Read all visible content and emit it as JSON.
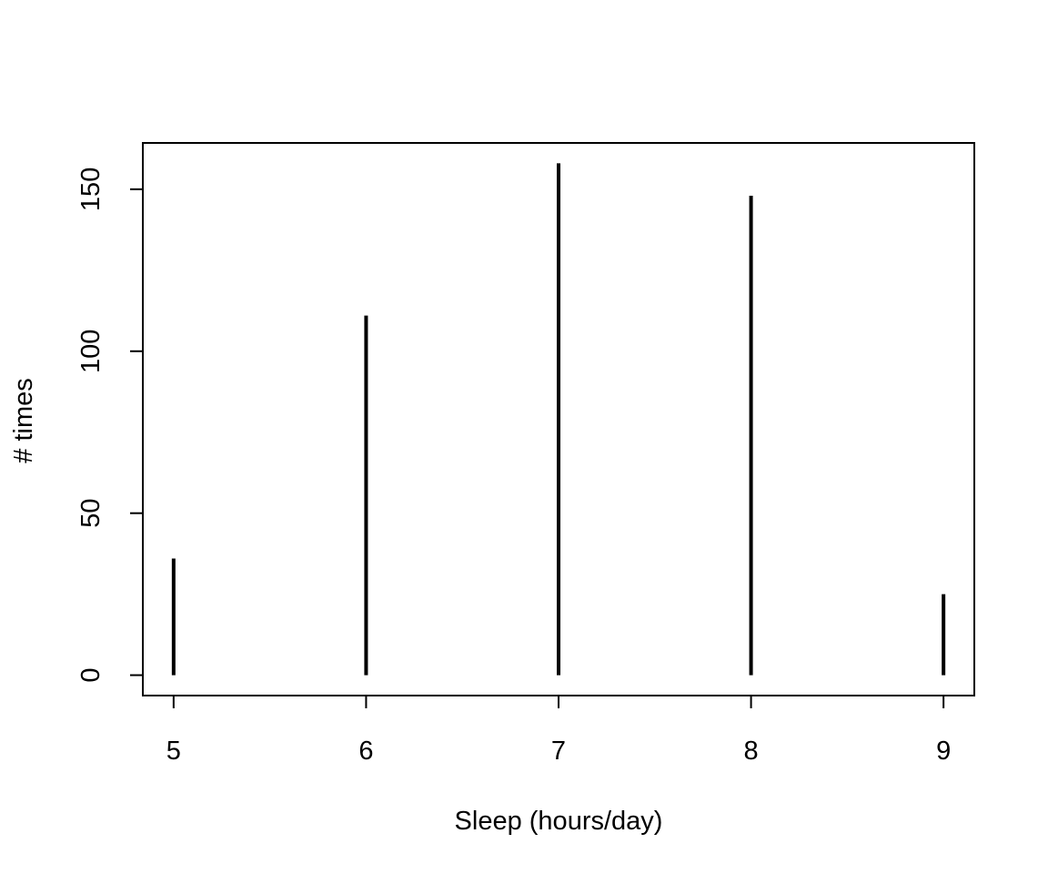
{
  "chart_data": {
    "type": "bar",
    "style": "spike",
    "x": [
      5,
      6,
      7,
      8,
      9
    ],
    "values": [
      36,
      111,
      158,
      148,
      25
    ],
    "xlabel": "Sleep (hours/day)",
    "ylabel": "# times",
    "xticks": [
      "5",
      "6",
      "7",
      "8",
      "9"
    ],
    "yticks": [
      "0",
      "50",
      "100",
      "150"
    ],
    "xlim": [
      4.84,
      9.16
    ],
    "ylim": [
      -6.3,
      164.3
    ],
    "grid": false,
    "legend": "none",
    "color": "#000000"
  }
}
